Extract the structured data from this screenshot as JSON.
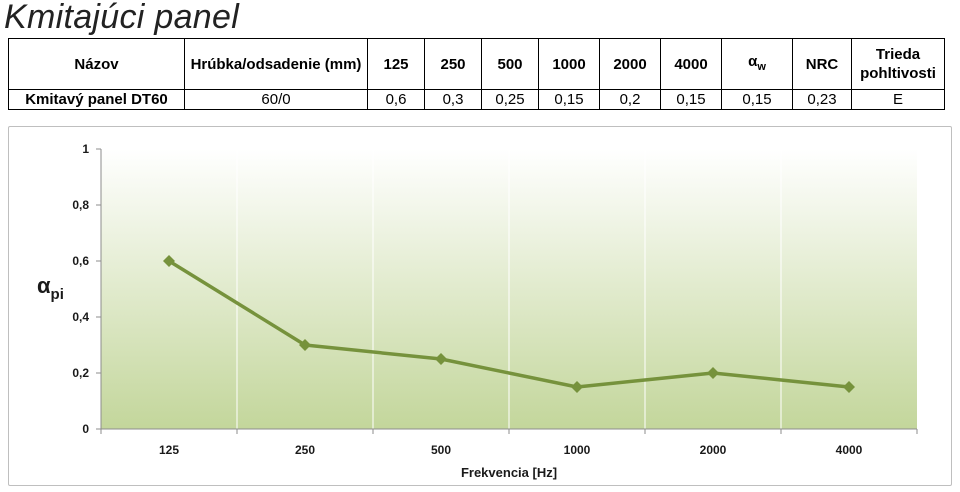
{
  "page": {
    "title": "Kmitajúci panel"
  },
  "table": {
    "headers": [
      "Názov",
      "Hrúbka/odsadenie (mm)",
      "125",
      "250",
      "500",
      "1000",
      "2000",
      "4000",
      "αw",
      "NRC",
      "Trieda pohltivosti"
    ],
    "rows": [
      [
        "Kmitavý panel DT60",
        "60/0",
        "0,6",
        "0,3",
        "0,25",
        "0,15",
        "0,2",
        "0,15",
        "0,15",
        "0,23",
        "E"
      ]
    ]
  },
  "chart_data": {
    "type": "line",
    "categories": [
      "125",
      "250",
      "500",
      "1000",
      "2000",
      "4000"
    ],
    "series": [
      {
        "values": [
          0.6,
          0.3,
          0.25,
          0.15,
          0.2,
          0.15
        ]
      }
    ],
    "xlabel": "Frekvencia [Hz]",
    "ylabel": "αpi",
    "ylim": [
      0,
      1
    ],
    "yticks": [
      "0",
      "0,2",
      "0,4",
      "0,6",
      "0,8",
      "1"
    ],
    "grid": "vertical",
    "line_color": "#76923c",
    "background": "green-gradient"
  }
}
